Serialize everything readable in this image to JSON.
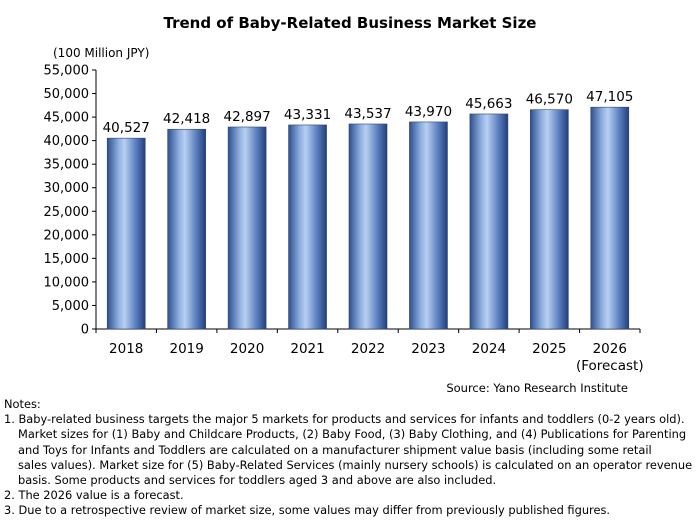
{
  "chart_data": {
    "type": "bar",
    "title": "Trend of Baby-Related Business Market Size",
    "ylabel": "(100 Million JPY)",
    "xlabel": "",
    "categories": [
      "2018",
      "2019",
      "2020",
      "2021",
      "2022",
      "2023",
      "2024",
      "2025",
      "2026"
    ],
    "category_sublabels": [
      "",
      "",
      "",
      "",
      "",
      "",
      "",
      "",
      "(Forecast)"
    ],
    "values": [
      40527,
      42418,
      42897,
      43331,
      43537,
      43970,
      45663,
      46570,
      47105
    ],
    "value_labels": [
      "40,527",
      "42,418",
      "42,897",
      "43,331",
      "43,537",
      "43,970",
      "45,663",
      "46,570",
      "47,105"
    ],
    "ylim": [
      0,
      55000
    ],
    "yticks": [
      0,
      5000,
      10000,
      15000,
      20000,
      25000,
      30000,
      35000,
      40000,
      45000,
      50000,
      55000
    ],
    "ytick_labels": [
      "0",
      "5,000",
      "10,000",
      "15,000",
      "20,000",
      "25,000",
      "30,000",
      "35,000",
      "40,000",
      "45,000",
      "50,000",
      "55,000"
    ],
    "grid": false,
    "legend": "none",
    "source": "Source: Yano Research Institute",
    "bar_color": "#5b7fc0"
  },
  "notes": {
    "heading": "Notes:",
    "lines": [
      "1. Baby-related business targets the major 5 markets for products and services for infants and toddlers (0-2 years old).",
      "Market sizes for (1) Baby and Childcare Products, (2) Baby Food, (3) Baby Clothing, and (4) Publications for Parenting",
      "and Toys for Infants and Toddlers are calculated on a manufacturer shipment value basis (including some retail",
      "sales values). Market size for (5) Baby-Related Services (mainly nursery schools) is calculated on an operator revenue",
      "basis. Some products and services for toddlers aged 3 and above are also included.",
      "2. The 2026 value is a forecast.",
      "3. Due to a retrospective review of market size, some values may differ from previously published figures."
    ]
  }
}
